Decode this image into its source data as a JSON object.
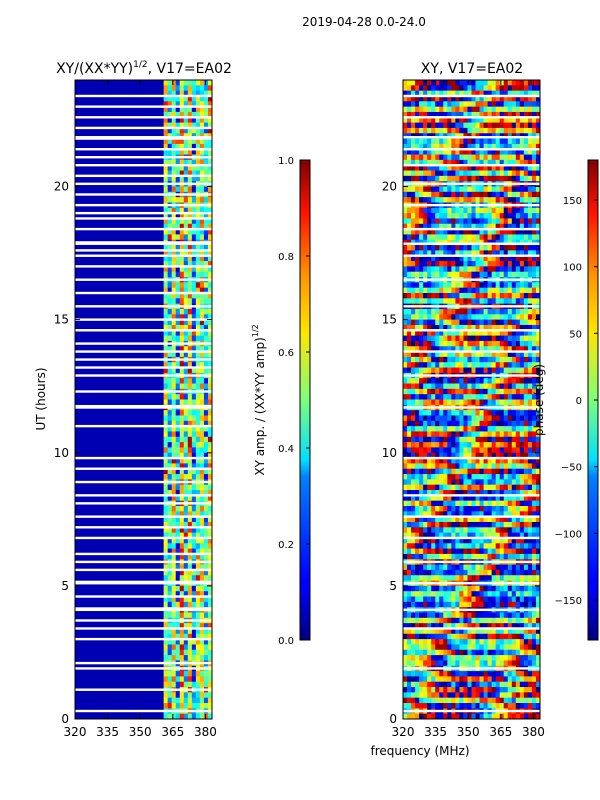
{
  "suptitle": "2019-04-28 0.0-24.0",
  "chart_data": [
    {
      "type": "heatmap",
      "title_main": "XY/(XX*YY)",
      "title_sup": "1/2",
      "title_tail": ", V17=EA02",
      "xlabel": "",
      "ylabel": "UT (hours)",
      "xlim": [
        320,
        383
      ],
      "ylim": [
        0,
        24
      ],
      "xticks": [
        320,
        335,
        350,
        365,
        380
      ],
      "yticks": [
        0,
        5,
        10,
        15,
        20
      ],
      "colorbar": {
        "colormap": "jet",
        "range": [
          0.0,
          1.0
        ],
        "ticks": [
          "0.0",
          "0.2",
          "0.4",
          "0.6",
          "0.8",
          "1.0"
        ],
        "label_main": "XY amp. / (XX*YY amp)",
        "label_sup": "1/2"
      },
      "description_values": {
        "background_level": 0.05,
        "band_start_mhz": 361.5,
        "band_levels": [
          0.55,
          0.35,
          0.6,
          0.3,
          0.7,
          0.4,
          0.65,
          0.3,
          0.5
        ],
        "flagged_hours": [
          0.3,
          1.1,
          1.9,
          2.1,
          3.0,
          3.4,
          3.7,
          4.1,
          4.15,
          4.6,
          5.1,
          5.15,
          5.6,
          5.9,
          6.2,
          6.8,
          7.2,
          7.6,
          8.1,
          8.4,
          8.9,
          9.4,
          9.8,
          11.0,
          11.7,
          11.75,
          12.3,
          12.9,
          13.2,
          13.5,
          13.8,
          14.1,
          14.6,
          15.0,
          15.5,
          16.0,
          16.5,
          17.0,
          17.4,
          17.6,
          17.85,
          17.9,
          18.4,
          18.8,
          19.0,
          19.3,
          19.7,
          20.1,
          20.4,
          20.8,
          21.1,
          21.4,
          21.8,
          21.85,
          22.2,
          22.6,
          23.0,
          23.4
        ]
      }
    },
    {
      "type": "heatmap",
      "title": "XY, V17=EA02",
      "xlabel": "frequency (MHz)",
      "ylabel": "",
      "xlim": [
        320,
        383
      ],
      "ylim": [
        0,
        24
      ],
      "xticks": [
        320,
        335,
        350,
        365,
        380
      ],
      "yticks": [
        0,
        5,
        10,
        15,
        20
      ],
      "colorbar": {
        "colormap": "jet",
        "range": [
          -180,
          180
        ],
        "ticks": [
          "150",
          "100",
          "50",
          "0",
          "−50",
          "−100",
          "−150"
        ],
        "label": "phase (deg)"
      },
      "description_values": {
        "flagged_hours": [
          0.3,
          1.9,
          3.4,
          4.1,
          5.1,
          5.9,
          6.8,
          7.6,
          8.4,
          9.8,
          11.7,
          12.9,
          13.8,
          14.6,
          15.5,
          16.5,
          17.4,
          17.85,
          18.4,
          19.3,
          20.1,
          20.8,
          21.4,
          21.85,
          22.6,
          23.4
        ]
      }
    }
  ]
}
